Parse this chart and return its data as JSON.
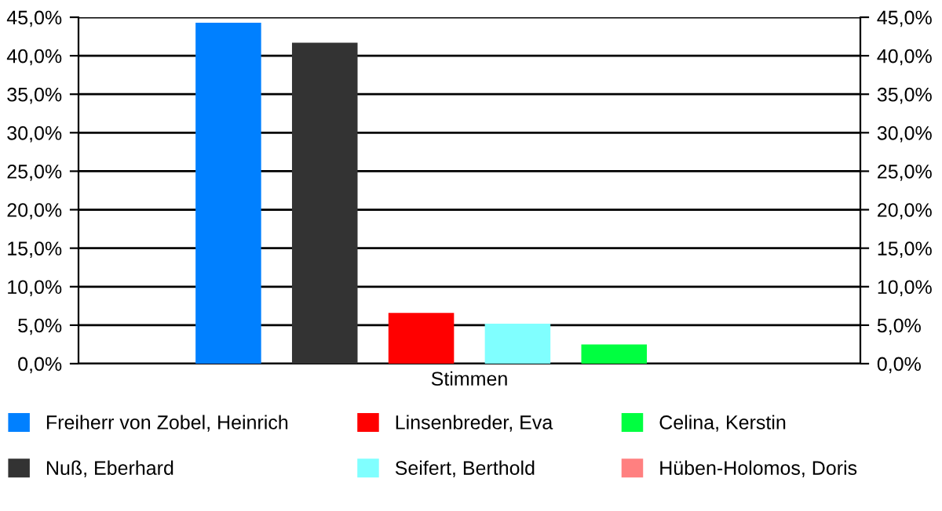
{
  "chart_data": {
    "type": "bar",
    "categories": [
      "Stimmen"
    ],
    "series": [
      {
        "name": "Freiherr von Zobel, Heinrich",
        "color": "#0080ff",
        "values": [
          44.3
        ]
      },
      {
        "name": "Nuß, Eberhard",
        "color": "#333333",
        "values": [
          41.7
        ]
      },
      {
        "name": "Linsenbreder, Eva",
        "color": "#ff0000",
        "values": [
          6.6
        ]
      },
      {
        "name": "Seifert, Berthold",
        "color": "#80ffff",
        "values": [
          5.2
        ]
      },
      {
        "name": "Celina, Kerstin",
        "color": "#00ff40",
        "values": [
          2.5
        ]
      },
      {
        "name": "Hüben-Holomos, Doris",
        "color": "#ff8080",
        "values": [
          0
        ]
      }
    ],
    "ylim": [
      0,
      45
    ],
    "yticks": [
      {
        "value": 0,
        "label": "0,0%"
      },
      {
        "value": 5,
        "label": "5,0%"
      },
      {
        "value": 10,
        "label": "10,0%"
      },
      {
        "value": 15,
        "label": "15,0%"
      },
      {
        "value": 20,
        "label": "20,0%"
      },
      {
        "value": 25,
        "label": "25,0%"
      },
      {
        "value": 30,
        "label": "30,0%"
      },
      {
        "value": 35,
        "label": "35,0%"
      },
      {
        "value": 40,
        "label": "40,0%"
      },
      {
        "value": 45,
        "label": "45,0%"
      }
    ],
    "grid": "y",
    "legend": "bottom"
  }
}
